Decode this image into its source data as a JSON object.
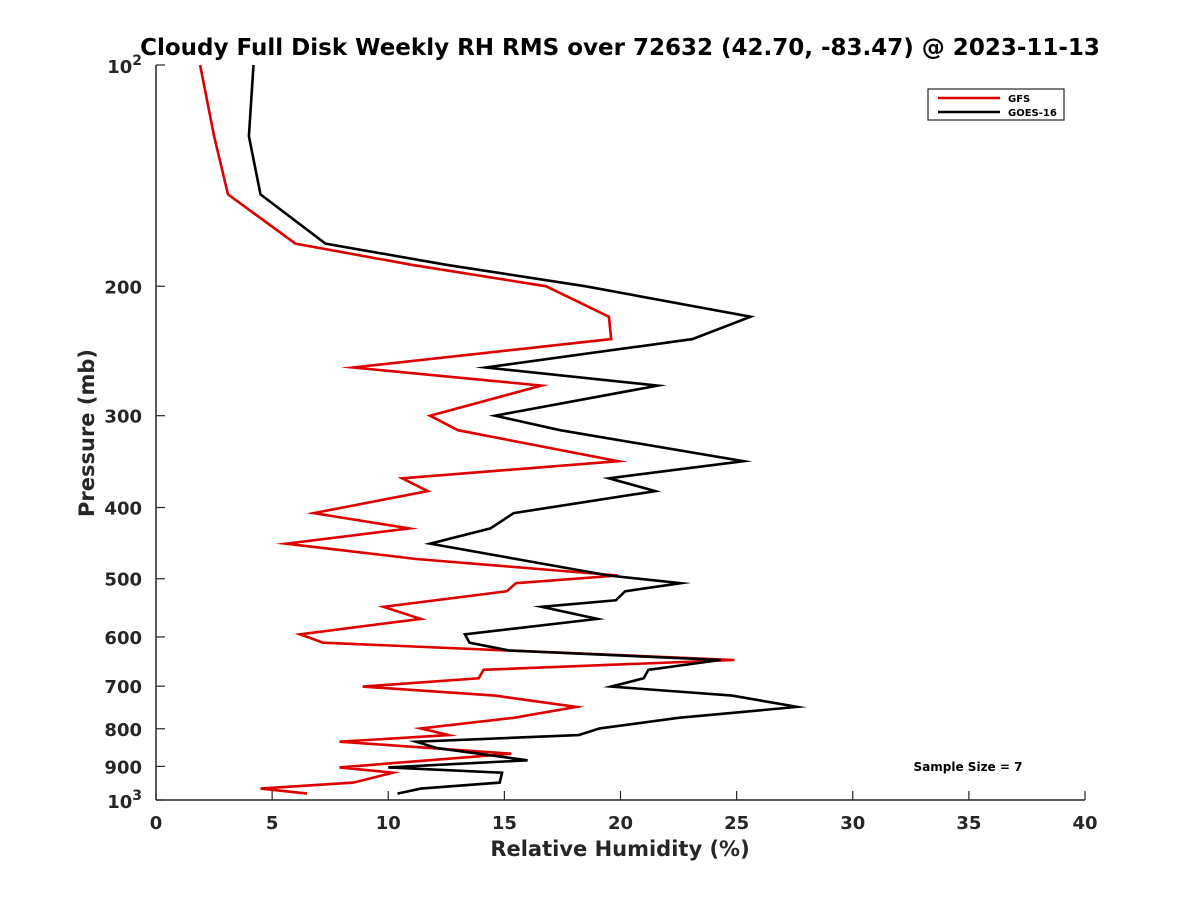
{
  "chart_data": {
    "type": "line",
    "title": "Cloudy Full Disk Weekly RH RMS over 72632 (42.70, -83.47) @ 2023-11-13",
    "xlabel": "Relative Humidity (%)",
    "ylabel": "Pressure (mb)",
    "xlim": [
      0,
      40
    ],
    "ylim": [
      100,
      1000
    ],
    "y_scale": "log",
    "y_reversed": true,
    "x_ticks": [
      0,
      5,
      10,
      15,
      20,
      25,
      30,
      35,
      40
    ],
    "x_tick_labels": [
      "0",
      "5",
      "10",
      "15",
      "20",
      "25",
      "30",
      "35",
      "40"
    ],
    "y_ticks": [
      200,
      300,
      400,
      500,
      600,
      700,
      800,
      900
    ],
    "y_tick_labels": [
      "200",
      "300",
      "400",
      "500",
      "600",
      "700",
      "800",
      "900"
    ],
    "y_end_labels": {
      "top": {
        "base": "10",
        "exp": "2",
        "value": 100
      },
      "bottom": {
        "base": "10",
        "exp": "3",
        "value": 1000
      }
    },
    "grid": false,
    "legend_position": "top-right",
    "annotation": "Sample Size = 7",
    "series": [
      {
        "name": "GFS",
        "color": "#dd0000",
        "points": [
          [
            1.9,
            100
          ],
          [
            2.5,
            125
          ],
          [
            3.1,
            150
          ],
          [
            6.0,
            175
          ],
          [
            11.0,
            187
          ],
          [
            16.8,
            200
          ],
          [
            19.5,
            220
          ],
          [
            19.6,
            236
          ],
          [
            8.5,
            258
          ],
          [
            16.6,
            273
          ],
          [
            11.8,
            300
          ],
          [
            13.0,
            314
          ],
          [
            19.9,
            346
          ],
          [
            10.6,
            365
          ],
          [
            11.7,
            380
          ],
          [
            6.8,
            407
          ],
          [
            10.9,
            427
          ],
          [
            5.6,
            448
          ],
          [
            11.2,
            470
          ],
          [
            19.9,
            495
          ],
          [
            15.5,
            507
          ],
          [
            15.1,
            520
          ],
          [
            9.8,
            546
          ],
          [
            11.4,
            567
          ],
          [
            6.2,
            595
          ],
          [
            7.2,
            611
          ],
          [
            24.9,
            645
          ],
          [
            14.1,
            665
          ],
          [
            13.9,
            683
          ],
          [
            8.9,
            701
          ],
          [
            14.6,
            721
          ],
          [
            18.1,
            747
          ],
          [
            15.4,
            773
          ],
          [
            11.4,
            799
          ],
          [
            12.6,
            816
          ],
          [
            7.9,
            833
          ],
          [
            15.3,
            865
          ],
          [
            7.9,
            903
          ],
          [
            10.2,
            918
          ],
          [
            8.5,
            947
          ],
          [
            4.5,
            965
          ],
          [
            6.5,
            980
          ]
        ]
      },
      {
        "name": "GOES-16",
        "color": "#000000",
        "points": [
          [
            4.2,
            100
          ],
          [
            4.0,
            125
          ],
          [
            4.5,
            150
          ],
          [
            7.3,
            175
          ],
          [
            12.5,
            187
          ],
          [
            18.5,
            200
          ],
          [
            25.6,
            220
          ],
          [
            23.1,
            236
          ],
          [
            14.2,
            258
          ],
          [
            21.6,
            273
          ],
          [
            14.6,
            300
          ],
          [
            17.4,
            314
          ],
          [
            25.3,
            346
          ],
          [
            19.5,
            365
          ],
          [
            21.5,
            380
          ],
          [
            15.4,
            407
          ],
          [
            14.4,
            427
          ],
          [
            11.8,
            448
          ],
          [
            19.5,
            495
          ],
          [
            22.6,
            507
          ],
          [
            20.2,
            520
          ],
          [
            19.8,
            535
          ],
          [
            16.6,
            546
          ],
          [
            19.0,
            567
          ],
          [
            13.3,
            595
          ],
          [
            13.5,
            611
          ],
          [
            15.2,
            626
          ],
          [
            24.3,
            645
          ],
          [
            21.2,
            665
          ],
          [
            21.0,
            683
          ],
          [
            19.6,
            701
          ],
          [
            24.8,
            721
          ],
          [
            27.6,
            747
          ],
          [
            22.5,
            773
          ],
          [
            19.1,
            799
          ],
          [
            18.2,
            816
          ],
          [
            11.2,
            833
          ],
          [
            12.1,
            850
          ],
          [
            16.0,
            883
          ],
          [
            10.0,
            903
          ],
          [
            14.9,
            918
          ],
          [
            14.8,
            947
          ],
          [
            11.4,
            965
          ],
          [
            10.4,
            980
          ]
        ]
      }
    ]
  }
}
